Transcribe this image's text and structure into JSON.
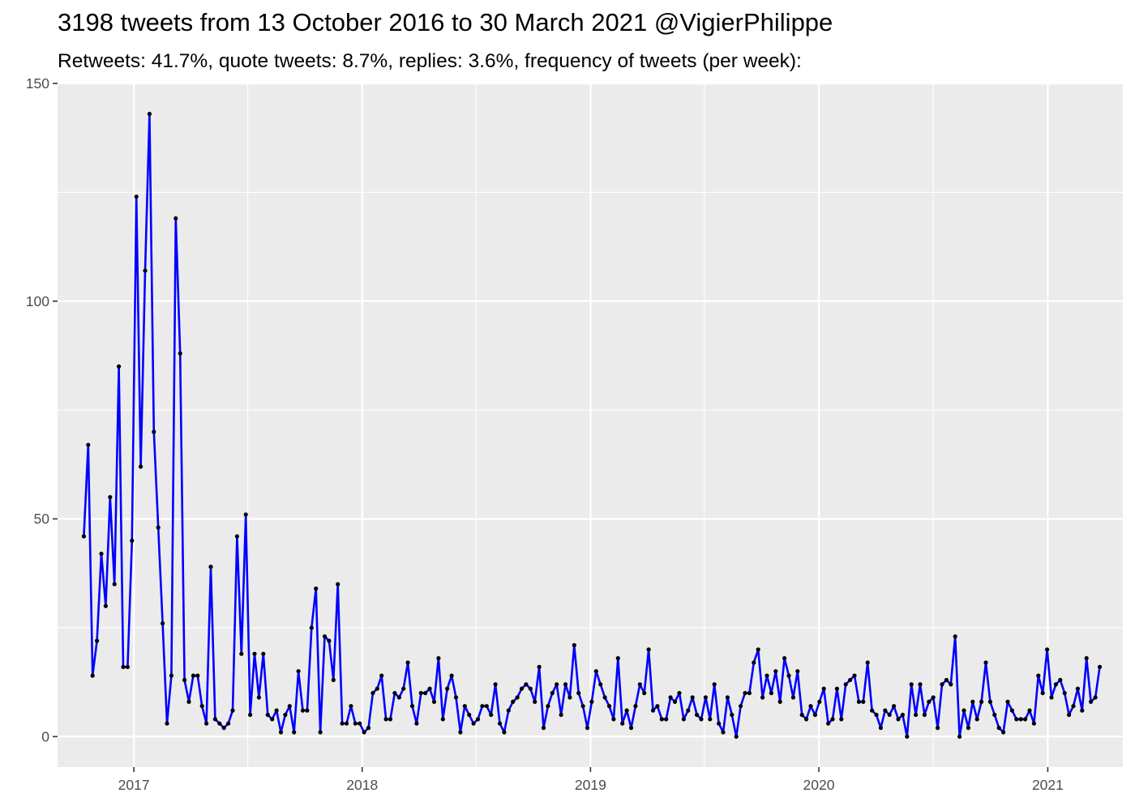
{
  "chart_data": {
    "type": "line",
    "title": "3198 tweets from 13 October 2016 to 30 March 2021 @VigierPhilippe",
    "subtitle": "Retweets: 41.7%, quote tweets: 8.7%, replies: 3.6%, frequency of tweets (per week):",
    "xlabel": "",
    "ylabel": "",
    "x_range": [
      "2016-09-01",
      "2021-05-01"
    ],
    "ylim": [
      -7,
      150
    ],
    "y_ticks": [
      "0",
      "50",
      "100",
      "150"
    ],
    "x_ticks": [
      "2017",
      "2018",
      "2019",
      "2020",
      "2021"
    ],
    "grid": true,
    "legend": "none",
    "line_color": "#0000ff",
    "point_color": "#000000",
    "background": "#ebebeb",
    "series": [
      {
        "x": [
          "2016-10-13",
          "2016-10-20",
          "2016-10-27",
          "2016-11-03",
          "2016-11-10",
          "2016-11-17",
          "2016-11-24",
          "2016-12-01",
          "2016-12-08",
          "2016-12-15",
          "2016-12-22",
          "2016-12-29",
          "2017-01-05",
          "2017-01-12",
          "2017-01-19",
          "2017-01-26",
          "2017-02-02",
          "2017-02-09",
          "2017-02-16",
          "2017-02-23",
          "2017-03-02",
          "2017-03-09",
          "2017-03-16",
          "2017-03-23",
          "2017-03-30",
          "2017-04-06",
          "2017-04-13",
          "2017-04-20",
          "2017-04-27",
          "2017-05-04",
          "2017-05-11",
          "2017-05-18",
          "2017-05-25",
          "2017-06-01",
          "2017-06-08",
          "2017-06-15",
          "2017-06-22",
          "2017-06-29",
          "2017-07-06",
          "2017-07-13",
          "2017-07-20",
          "2017-07-27",
          "2017-08-03",
          "2017-08-10",
          "2017-08-17",
          "2017-08-24",
          "2017-08-31",
          "2017-09-07",
          "2017-09-14",
          "2017-09-21",
          "2017-09-28",
          "2017-10-05",
          "2017-10-12",
          "2017-10-19",
          "2017-10-26",
          "2017-11-02",
          "2017-11-09",
          "2017-11-16",
          "2017-11-23",
          "2017-11-30",
          "2017-12-07",
          "2017-12-14",
          "2017-12-21",
          "2017-12-28",
          "2018-01-04",
          "2018-01-11",
          "2018-01-18",
          "2018-01-25",
          "2018-02-01",
          "2018-02-08",
          "2018-02-15",
          "2018-02-22",
          "2018-03-01",
          "2018-03-08",
          "2018-03-15",
          "2018-03-22",
          "2018-03-29",
          "2018-04-05",
          "2018-04-12",
          "2018-04-19",
          "2018-04-26",
          "2018-05-03",
          "2018-05-10",
          "2018-05-17",
          "2018-05-24",
          "2018-05-31",
          "2018-06-07",
          "2018-06-14",
          "2018-06-21",
          "2018-06-28",
          "2018-07-05",
          "2018-07-12",
          "2018-07-19",
          "2018-07-26",
          "2018-08-02",
          "2018-08-09",
          "2018-08-16",
          "2018-08-23",
          "2018-08-30",
          "2018-09-06",
          "2018-09-13",
          "2018-09-20",
          "2018-09-27",
          "2018-10-04",
          "2018-10-11",
          "2018-10-18",
          "2018-10-25",
          "2018-11-01",
          "2018-11-08",
          "2018-11-15",
          "2018-11-22",
          "2018-11-29",
          "2018-12-06",
          "2018-12-13",
          "2018-12-20",
          "2018-12-27",
          "2019-01-03",
          "2019-01-10",
          "2019-01-17",
          "2019-01-24",
          "2019-01-31",
          "2019-02-07",
          "2019-02-14",
          "2019-02-21",
          "2019-02-28",
          "2019-03-07",
          "2019-03-14",
          "2019-03-21",
          "2019-03-28",
          "2019-04-04",
          "2019-04-11",
          "2019-04-18",
          "2019-04-25",
          "2019-05-02",
          "2019-05-09",
          "2019-05-16",
          "2019-05-23",
          "2019-05-30",
          "2019-06-06",
          "2019-06-13",
          "2019-06-20",
          "2019-06-27",
          "2019-07-04",
          "2019-07-11",
          "2019-07-18",
          "2019-07-25",
          "2019-08-01",
          "2019-08-08",
          "2019-08-15",
          "2019-08-22",
          "2019-08-29",
          "2019-09-05",
          "2019-09-12",
          "2019-09-19",
          "2019-09-26",
          "2019-10-03",
          "2019-10-10",
          "2019-10-17",
          "2019-10-24",
          "2019-10-31",
          "2019-11-07",
          "2019-11-14",
          "2019-11-21",
          "2019-11-28",
          "2019-12-05",
          "2019-12-12",
          "2019-12-19",
          "2019-12-26",
          "2020-01-02",
          "2020-01-09",
          "2020-01-16",
          "2020-01-23",
          "2020-01-30",
          "2020-02-06",
          "2020-02-13",
          "2020-02-20",
          "2020-02-27",
          "2020-03-05",
          "2020-03-12",
          "2020-03-19",
          "2020-03-26",
          "2020-04-02",
          "2020-04-09",
          "2020-04-16",
          "2020-04-23",
          "2020-04-30",
          "2020-05-07",
          "2020-05-14",
          "2020-05-21",
          "2020-05-28",
          "2020-06-04",
          "2020-06-11",
          "2020-06-18",
          "2020-06-25",
          "2020-07-02",
          "2020-07-09",
          "2020-07-16",
          "2020-07-23",
          "2020-07-30",
          "2020-08-06",
          "2020-08-13",
          "2020-08-20",
          "2020-08-27",
          "2020-09-03",
          "2020-09-10",
          "2020-09-17",
          "2020-09-24",
          "2020-10-01",
          "2020-10-08",
          "2020-10-15",
          "2020-10-22",
          "2020-10-29",
          "2020-11-05",
          "2020-11-12",
          "2020-11-19",
          "2020-11-26",
          "2020-12-03",
          "2020-12-10",
          "2020-12-17",
          "2020-12-24",
          "2020-12-31",
          "2021-01-07",
          "2021-01-14",
          "2021-01-21",
          "2021-01-28",
          "2021-02-04",
          "2021-02-11",
          "2021-02-18",
          "2021-02-25",
          "2021-03-04",
          "2021-03-11",
          "2021-03-18",
          "2021-03-25"
        ],
        "values": [
          46,
          67,
          14,
          22,
          42,
          30,
          55,
          35,
          85,
          16,
          16,
          45,
          124,
          62,
          107,
          143,
          70,
          48,
          26,
          3,
          14,
          119,
          88,
          13,
          8,
          14,
          14,
          7,
          3,
          39,
          4,
          3,
          2,
          3,
          6,
          46,
          19,
          51,
          5,
          19,
          9,
          19,
          5,
          4,
          6,
          1,
          5,
          7,
          1,
          15,
          6,
          6,
          25,
          34,
          1,
          23,
          22,
          13,
          35,
          3,
          3,
          7,
          3,
          3,
          1,
          2,
          10,
          11,
          14,
          4,
          4,
          10,
          9,
          11,
          17,
          7,
          3,
          10,
          10,
          11,
          8,
          18,
          4,
          11,
          14,
          9,
          1,
          7,
          5,
          3,
          4,
          7,
          7,
          5,
          12,
          3,
          1,
          6,
          8,
          9,
          11,
          12,
          11,
          8,
          16,
          2,
          7,
          10,
          12,
          5,
          12,
          9,
          21,
          10,
          7,
          2,
          8,
          15,
          12,
          9,
          7,
          4,
          18,
          3,
          6,
          2,
          7,
          12,
          10,
          20,
          6,
          7,
          4,
          4,
          9,
          8,
          10,
          4,
          6,
          9,
          5,
          4,
          9,
          4,
          12,
          3,
          1,
          9,
          5,
          0,
          7,
          10,
          10,
          17,
          20,
          9,
          14,
          10,
          15,
          8,
          18,
          14,
          9,
          15,
          5,
          4,
          7,
          5,
          8,
          11,
          3,
          4,
          11,
          4,
          12,
          13,
          14,
          8,
          8,
          17,
          6,
          5,
          2,
          6,
          5,
          7,
          4,
          5,
          0,
          12,
          5,
          12,
          5,
          8,
          9,
          2,
          12,
          13,
          12,
          23,
          0,
          6,
          2,
          8,
          4,
          8,
          17,
          8,
          5,
          2,
          1,
          8,
          6,
          4,
          4,
          4,
          6,
          3,
          14,
          10,
          20,
          9,
          12,
          13,
          10,
          5,
          7,
          11,
          6,
          18,
          8,
          9,
          16
        ]
      }
    ]
  }
}
